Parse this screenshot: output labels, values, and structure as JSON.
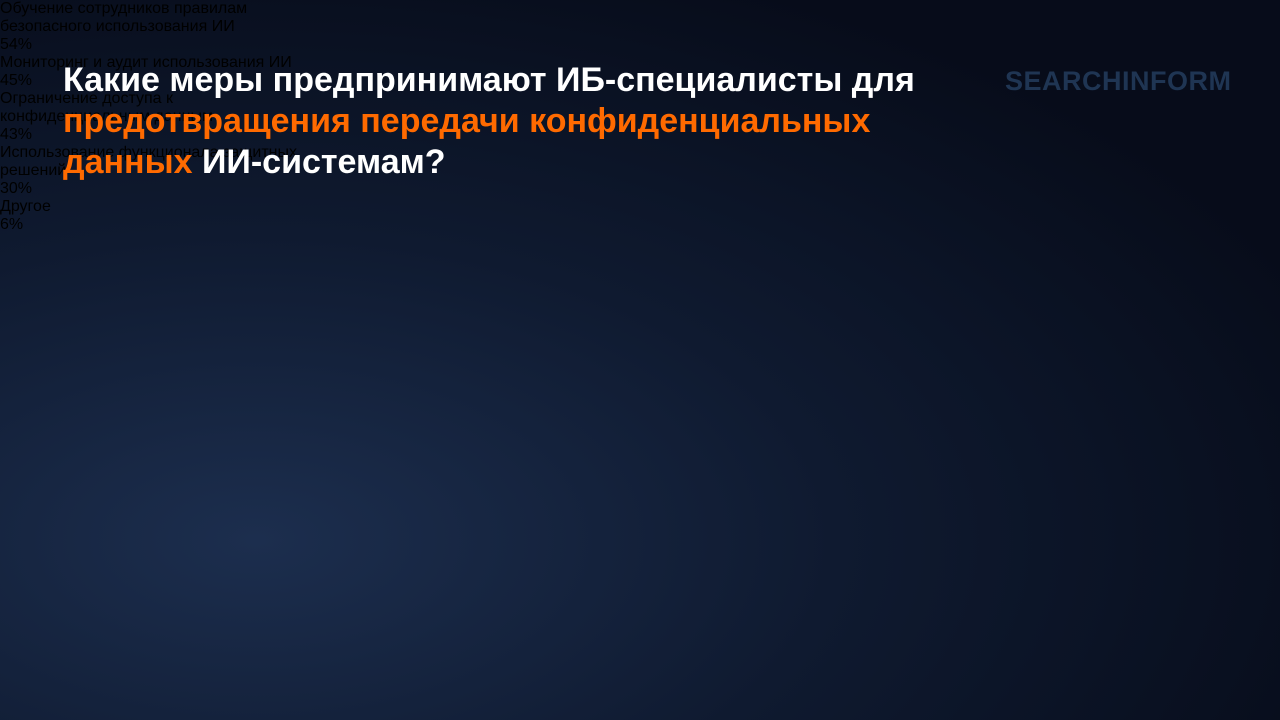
{
  "chart_data": {
    "type": "bar",
    "title": [
      "Какие меры предпринимают ИБ-специалисты для",
      "предотвращения передачи конфиденциальных данных",
      "ИИ-системам?"
    ],
    "title_colors": [
      "#ffffff",
      "#ff6a00",
      "#ffffff"
    ],
    "logo": "SEARCHINFORM",
    "categories": [
      "Обучение сотрудников правилам безопасного использования ИИ",
      "Мониторинг и аудит использования ИИ",
      "Ограничение доступа к конфиденциальным данным",
      "Использование функционала защитных решений",
      "Другое"
    ],
    "values": [
      54,
      45,
      43,
      30,
      6
    ],
    "value_labels": [
      "54%",
      "45%",
      "43%",
      "30%",
      "6%"
    ],
    "color": "#ff6a00",
    "track_color": "#3a4356",
    "xlim": [
      0,
      100
    ]
  }
}
